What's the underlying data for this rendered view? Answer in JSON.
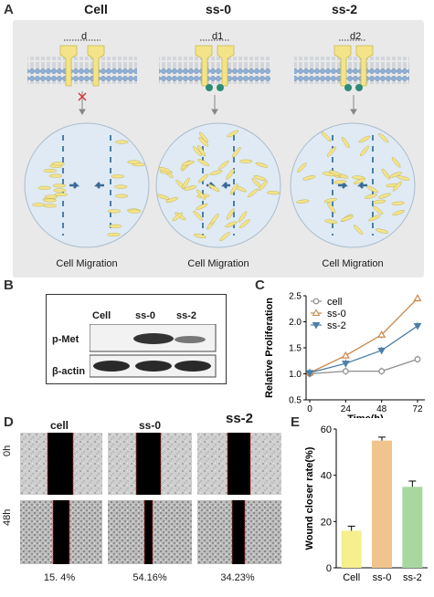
{
  "panelA": {
    "label": "A",
    "columns": [
      {
        "title": "Cell",
        "distance": "d",
        "caption": "Cell Migration"
      },
      {
        "title": "ss-0",
        "distance": "d1",
        "caption": "Cell Migration"
      },
      {
        "title": "ss-2",
        "distance": "d2",
        "caption": "Cell Migration"
      }
    ]
  },
  "panelB": {
    "label": "B",
    "lanes": [
      "Cell",
      "ss-0",
      "ss-2"
    ],
    "rows": [
      "p-Met",
      "β-actin"
    ]
  },
  "panelC": {
    "label": "C",
    "chart_data": {
      "type": "line",
      "xlabel": "Time(h)",
      "ylabel": "Relative Proliferation",
      "x": [
        0,
        24,
        48,
        72
      ],
      "xlim": [
        0,
        72
      ],
      "ylim": [
        0.5,
        2.5
      ],
      "yticks": [
        0.5,
        1.0,
        1.5,
        2.0,
        2.5
      ],
      "legend": "top-left",
      "series": [
        {
          "name": "cell",
          "values": [
            1.0,
            1.05,
            1.05,
            1.28
          ],
          "color": "#8c8c8c",
          "marker": "circle"
        },
        {
          "name": "ss-0",
          "values": [
            1.02,
            1.35,
            1.75,
            2.45
          ],
          "color": "#c9874a",
          "marker": "triangle-up"
        },
        {
          "name": "ss-2",
          "values": [
            1.02,
            1.2,
            1.45,
            1.92
          ],
          "color": "#4b7fa8",
          "marker": "triangle-down"
        }
      ]
    }
  },
  "panelD": {
    "label": "D",
    "columns": [
      "cell",
      "ss-0",
      "ss-2"
    ],
    "rows": [
      "0h",
      "48h"
    ],
    "percentages": [
      "15. 4%",
      "54.16%",
      "34.23%"
    ]
  },
  "panelE": {
    "label": "E",
    "chart_data": {
      "type": "bar",
      "categories": [
        "Cell",
        "ss-0",
        "ss-2"
      ],
      "values": [
        16,
        55,
        35
      ],
      "errors": [
        2,
        1.5,
        2.5
      ],
      "ylabel": "Wound closer rate(%)",
      "ylim": [
        0,
        60
      ],
      "yticks": [
        0,
        20,
        40,
        60
      ],
      "colors": [
        "#f5ef8c",
        "#f0c48c",
        "#a8d8a0"
      ]
    }
  }
}
